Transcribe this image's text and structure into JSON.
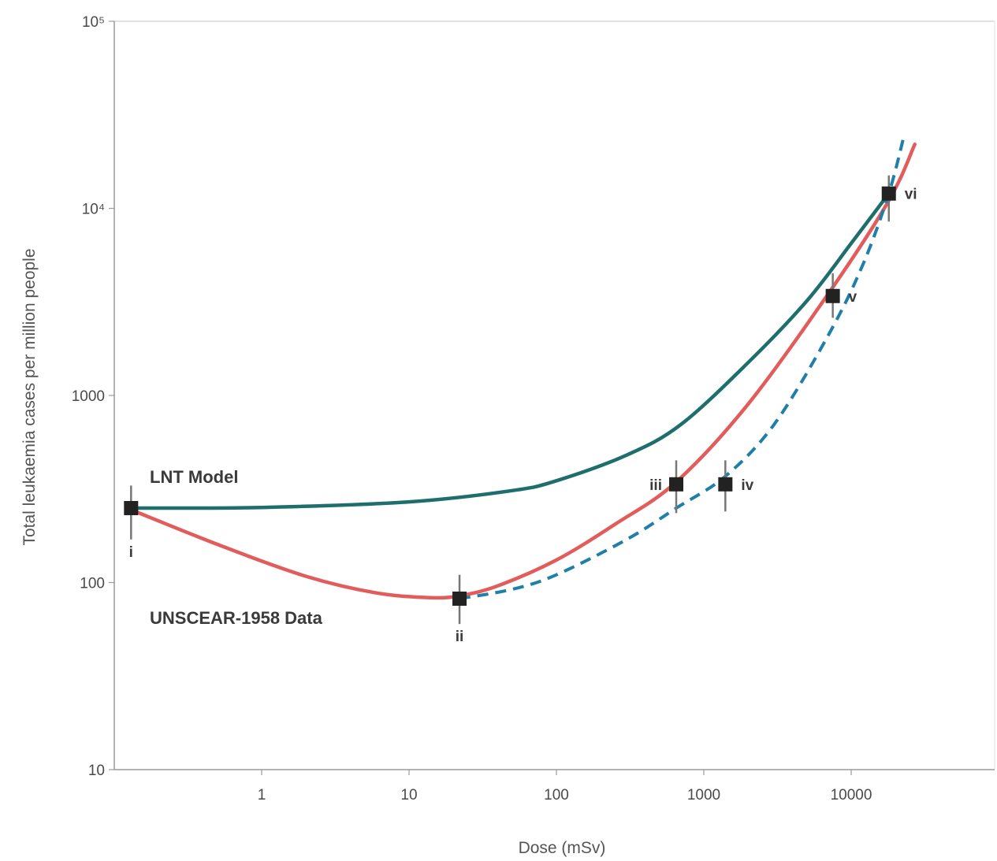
{
  "chart_data": {
    "type": "line",
    "title": "",
    "xlabel": "Dose (mSv)",
    "ylabel": "Total leukaemia cases per million people",
    "x_scale": "log",
    "y_scale": "log",
    "xlim": [
      0.1,
      100000
    ],
    "ylim": [
      10,
      100000
    ],
    "x_ticks": [
      {
        "value": 1,
        "label": "1"
      },
      {
        "value": 10,
        "label": "10"
      },
      {
        "value": 100,
        "label": "100"
      },
      {
        "value": 1000,
        "label": "1000"
      },
      {
        "value": 10000,
        "label": "10000"
      }
    ],
    "y_ticks": [
      {
        "value": 10,
        "label": "10"
      },
      {
        "value": 100,
        "label": "100"
      },
      {
        "value": 1000,
        "label": "1000"
      },
      {
        "value": 10000,
        "label": "10⁴"
      },
      {
        "value": 100000,
        "label": "10⁵"
      }
    ],
    "grid": false,
    "series": [
      {
        "name": "LNT Model",
        "color": "#1f6e6e",
        "style": "solid",
        "x": [
          0.13,
          1,
          10,
          50,
          100,
          300,
          700,
          2000,
          5000,
          10000,
          18000
        ],
        "y": [
          250,
          252,
          270,
          310,
          350,
          480,
          700,
          1500,
          3200,
          6500,
          12000
        ]
      },
      {
        "name": "UNSCEAR-1958 Data",
        "color": "#e25c5c",
        "style": "solid",
        "x": [
          0.13,
          0.5,
          2,
          6,
          14,
          22,
          40,
          100,
          250,
          650,
          2000,
          7000,
          18000,
          27000
        ],
        "y": [
          245,
          160,
          108,
          88,
          83,
          85,
          96,
          132,
          205,
          345,
          900,
          3500,
          11000,
          22000
        ]
      },
      {
        "name": "",
        "color": "#1f7fa8",
        "style": "dashed",
        "x": [
          22,
          50,
          100,
          300,
          650,
          1400,
          3000,
          7000,
          12000,
          18000,
          23000
        ],
        "y": [
          82,
          92,
          110,
          170,
          250,
          370,
          700,
          2100,
          5000,
          12000,
          25000
        ]
      }
    ],
    "points": [
      {
        "label": "i",
        "x": 0.13,
        "y": 250,
        "err_low": 170,
        "err_high": 330
      },
      {
        "label": "ii",
        "x": 22,
        "y": 82,
        "err_low": 60,
        "err_high": 110
      },
      {
        "label": "iii",
        "x": 650,
        "y": 335,
        "err_low": 235,
        "err_high": 450
      },
      {
        "label": "iv",
        "x": 1400,
        "y": 335,
        "err_low": 240,
        "err_high": 450
      },
      {
        "label": "v",
        "x": 7500,
        "y": 3400,
        "err_low": 2600,
        "err_high": 4500
      },
      {
        "label": "vi",
        "x": 18000,
        "y": 12000,
        "err_low": 8500,
        "err_high": 15000
      }
    ],
    "annotations": [
      "LNT Model",
      "UNSCEAR-1958 Data"
    ]
  }
}
